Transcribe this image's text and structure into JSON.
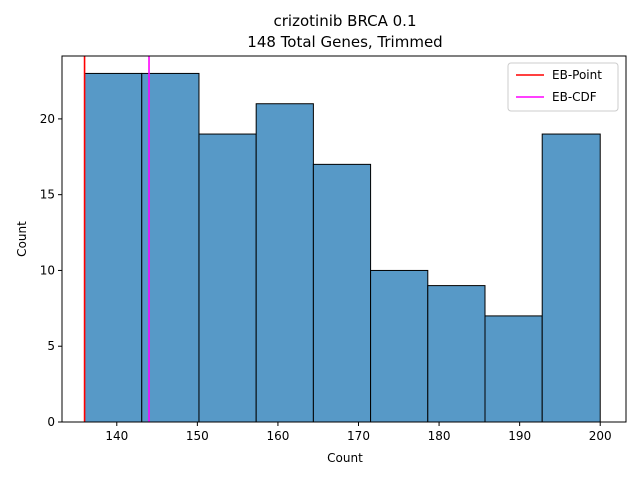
{
  "chart_data": {
    "type": "bar",
    "title": "crizotinib BRCA 0.1",
    "subtitle": "148 Total Genes, Trimmed",
    "xlabel": "Count",
    "ylabel": "Count",
    "xlim": [
      133.2,
      203.2
    ],
    "ylim": [
      0,
      24.15
    ],
    "xticks": [
      140,
      150,
      160,
      170,
      180,
      190,
      200
    ],
    "yticks": [
      0,
      5,
      10,
      15,
      20
    ],
    "bins": [
      {
        "x0": 136.0,
        "x1": 143.1,
        "count": 23
      },
      {
        "x0": 143.1,
        "x1": 150.2,
        "count": 23
      },
      {
        "x0": 150.2,
        "x1": 157.3,
        "count": 19
      },
      {
        "x0": 157.3,
        "x1": 164.4,
        "count": 21
      },
      {
        "x0": 164.4,
        "x1": 171.5,
        "count": 17
      },
      {
        "x0": 171.5,
        "x1": 178.6,
        "count": 10
      },
      {
        "x0": 178.6,
        "x1": 185.7,
        "count": 9
      },
      {
        "x0": 185.7,
        "x1": 192.8,
        "count": 7
      },
      {
        "x0": 192.8,
        "x1": 200.0,
        "count": 19
      }
    ],
    "bar_color": "#5799c7",
    "vlines": [
      {
        "name": "EB-Point",
        "x": 136.0,
        "color": "#ff0000"
      },
      {
        "name": "EB-CDF",
        "x": 144.0,
        "color": "#ff00ff"
      }
    ],
    "legend_position": "top-right",
    "grid": false
  }
}
